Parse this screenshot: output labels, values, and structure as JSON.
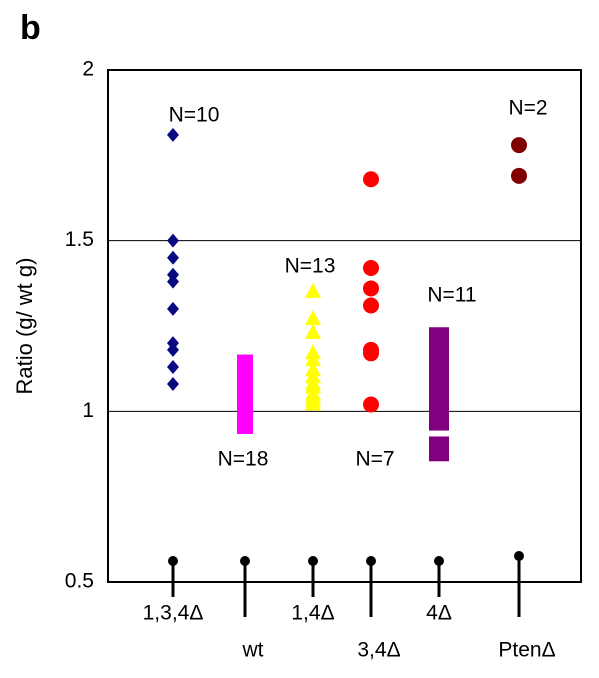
{
  "chart_data": {
    "type": "strip",
    "panel_label": "b",
    "ylabel": "Ratio (g/ wt g)",
    "ylim": [
      0.5,
      2
    ],
    "yticks": [
      0.5,
      1,
      1.5,
      2
    ],
    "grid": true,
    "groups": [
      {
        "category": "1,3,4Δ",
        "label": "N=10",
        "color": "#0a0a80",
        "marker": "diamond",
        "values": [
          1.81,
          1.5,
          1.45,
          1.4,
          1.38,
          1.3,
          1.2,
          1.18,
          1.13,
          1.08
        ]
      },
      {
        "category": "wt",
        "label": "N=18",
        "color": "#ff00ff",
        "marker": "square",
        "values": [
          1.14,
          1.12,
          1.1,
          1.09,
          1.08,
          1.07,
          1.06,
          1.05,
          1.04,
          1.03,
          1.03,
          1.02,
          1.01,
          1.0,
          0.99,
          0.98,
          0.97,
          0.96
        ]
      },
      {
        "category": "1,4Δ",
        "label": "N=13",
        "color": "#ffff00",
        "marker": "triangle",
        "values": [
          1.35,
          1.27,
          1.23,
          1.17,
          1.15,
          1.12,
          1.1,
          1.08,
          1.07,
          1.05,
          1.04,
          1.03,
          1.02
        ]
      },
      {
        "category": "3,4Δ",
        "label": "N=7",
        "color": "#ff0000",
        "marker": "circle",
        "values": [
          1.68,
          1.42,
          1.36,
          1.31,
          1.18,
          1.17,
          1.02
        ]
      },
      {
        "category": "4Δ",
        "label": "N=11",
        "color": "#800080",
        "marker": "square",
        "values": [
          1.22,
          1.19,
          1.15,
          1.12,
          1.09,
          1.06,
          1.03,
          1.0,
          0.97,
          0.9,
          0.88
        ]
      },
      {
        "category": "PtenΔ",
        "label": "N=2",
        "color": "#800000",
        "marker": "circle",
        "values": [
          1.78,
          1.69
        ]
      }
    ]
  }
}
